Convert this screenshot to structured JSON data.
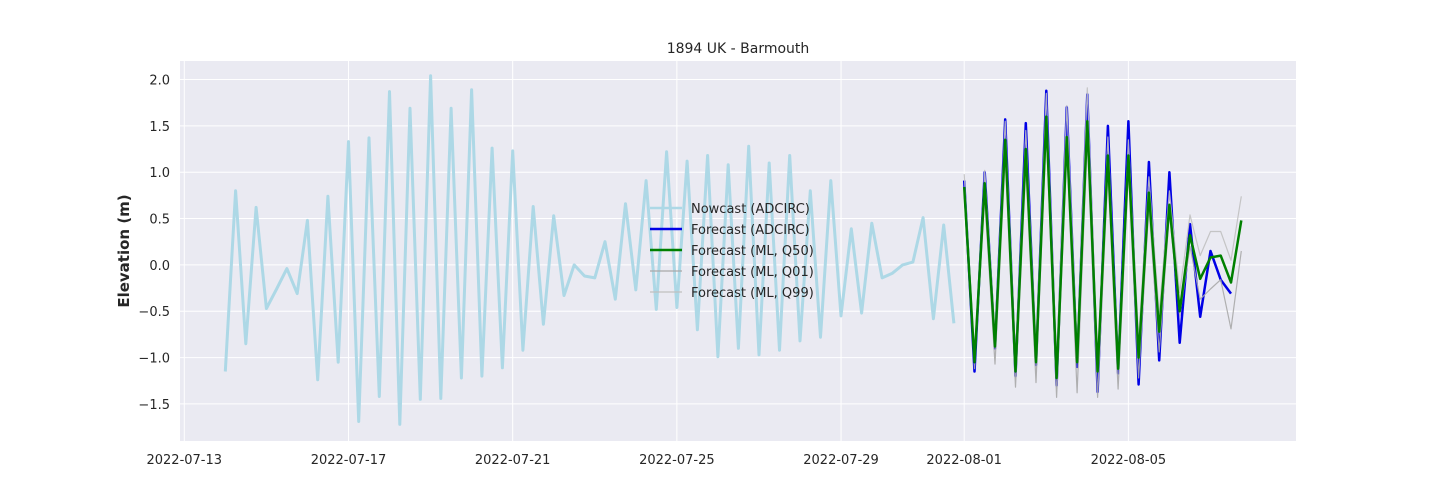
{
  "chart_data": {
    "type": "line",
    "title": "1894 UK - Barmouth",
    "xlabel": "",
    "ylabel": "Elevation (m)",
    "x_ticks": [
      "2022-07-13",
      "2022-07-17",
      "2022-07-21",
      "2022-07-25",
      "2022-07-29",
      "2022-08-01",
      "2022-08-05"
    ],
    "y_ticks": [
      "2.0",
      "1.5",
      "1.0",
      "0.5",
      "0.0",
      "−0.5",
      "−1.0",
      "−1.5"
    ],
    "y_tick_values": [
      2.0,
      1.5,
      1.0,
      0.5,
      0.0,
      -0.5,
      -1.0,
      -1.5
    ],
    "xlim": [
      "2022-07-12 21:30",
      "2022-08-09 02:00"
    ],
    "ylim": [
      -1.9,
      2.2
    ],
    "grid": true,
    "legend_position": "center",
    "background_color": "#eaeaf2",
    "series": [
      {
        "name": "Nowcast (ADCIRC)",
        "color": "#add8e6",
        "start": "2022-07-14 00:00",
        "step_hours": 6,
        "values": [
          -1.15,
          0.8,
          -0.85,
          0.62,
          -0.47,
          -0.26,
          -0.04,
          -0.31,
          0.48,
          -1.24,
          0.74,
          -1.05,
          1.33,
          -1.69,
          1.37,
          -1.42,
          1.87,
          -1.72,
          1.69,
          -1.45,
          2.04,
          -1.44,
          1.69,
          -1.22,
          1.89,
          -1.2,
          1.26,
          -1.11,
          1.23,
          -0.92,
          0.63,
          -0.64,
          0.53,
          -0.33,
          0.0,
          -0.12,
          -0.14,
          0.25,
          -0.37,
          0.66,
          -0.27,
          0.91,
          -0.48,
          1.22,
          -0.46,
          1.12,
          -0.7,
          1.18,
          -0.99,
          1.08,
          -0.9,
          1.28,
          -0.97,
          1.1,
          -0.92,
          1.18,
          -0.82,
          0.8,
          -0.78,
          0.91,
          -0.55,
          0.39,
          -0.52,
          0.45,
          -0.14,
          -0.09,
          0.0,
          0.03,
          0.51,
          -0.58,
          0.43,
          -0.63
        ]
      },
      {
        "name": "Forecast (ADCIRC)",
        "color": "#0000e6",
        "start": "2022-08-01 00:00",
        "step_hours": 6,
        "values": [
          0.91,
          -1.15,
          1.0,
          -0.9,
          1.57,
          -1.2,
          1.53,
          -1.08,
          1.88,
          -1.3,
          1.7,
          -1.1,
          1.84,
          -1.37,
          1.5,
          -1.17,
          1.55,
          -1.29,
          1.11,
          -1.03,
          1.0,
          -0.84,
          0.44,
          -0.56,
          0.15,
          -0.16,
          -0.31
        ]
      },
      {
        "name": "Forecast (ML, Q50)",
        "color": "#008000",
        "start": "2022-08-01 00:00",
        "step_hours": 6,
        "values": [
          0.84,
          -1.05,
          0.88,
          -0.88,
          1.35,
          -1.15,
          1.25,
          -1.05,
          1.6,
          -1.22,
          1.38,
          -1.05,
          1.55,
          -1.15,
          1.18,
          -1.12,
          1.18,
          -1.0,
          0.78,
          -0.72,
          0.65,
          -0.5,
          0.32,
          -0.15,
          0.08,
          0.1,
          -0.19,
          0.48
        ]
      },
      {
        "name": "Forecast (ML, Q01)",
        "color": "#a9a9a9",
        "start": "2022-08-01 00:00",
        "step_hours": 6,
        "values": [
          0.78,
          -1.12,
          0.72,
          -1.07,
          1.15,
          -1.32,
          1.05,
          -1.27,
          1.44,
          -1.43,
          1.25,
          -1.38,
          1.35,
          -1.43,
          1.0,
          -1.34,
          1.0,
          -1.22,
          0.63,
          -0.94,
          0.56,
          -0.55,
          0.2,
          -0.37,
          -0.26,
          -0.16,
          -0.69,
          0.15
        ]
      },
      {
        "name": "Forecast (ML, Q99)",
        "color": "#c0c0c0",
        "start": "2022-08-01 00:00",
        "step_hours": 6,
        "values": [
          0.98,
          -0.97,
          1.02,
          -0.74,
          1.55,
          -0.98,
          1.45,
          -0.86,
          1.85,
          -1.03,
          1.72,
          -0.9,
          1.91,
          -1.05,
          1.38,
          -1.0,
          1.35,
          -0.8,
          0.95,
          -0.52,
          0.8,
          -0.3,
          0.54,
          0.1,
          0.36,
          0.36,
          0.05,
          0.74
        ]
      }
    ]
  }
}
